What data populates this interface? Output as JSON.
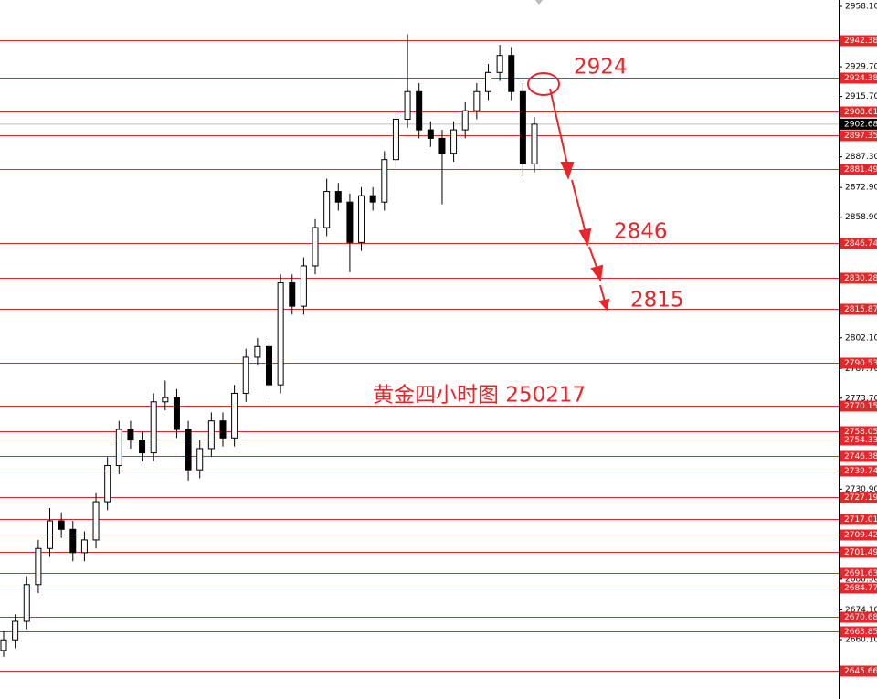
{
  "chart_data": {
    "type": "candlestick",
    "title": "黄金四小时图 250217",
    "annotations": [
      "2924",
      "2846",
      "2815"
    ],
    "open": [
      2655,
      2660,
      2668.7,
      2686,
      2703,
      2716,
      2712,
      2701,
      2707,
      2725,
      2742,
      2759,
      2754,
      2748,
      2772,
      2774,
      2759,
      2740,
      2750,
      2763,
      2755,
      2776,
      2793,
      2798,
      2780,
      2828,
      2817,
      2836,
      2854,
      2871,
      2866,
      2847,
      2869,
      2866,
      2886,
      2905,
      2918,
      2900,
      2896,
      2889,
      2900,
      2909,
      2918,
      2927,
      2935,
      2918,
      2884
    ],
    "high": [
      2664,
      2672,
      2690,
      2707,
      2722,
      2720,
      2716,
      2711,
      2729,
      2746,
      2763,
      2763,
      2758,
      2776,
      2782,
      2778,
      2763,
      2754,
      2767,
      2767,
      2780,
      2797,
      2802,
      2802,
      2832,
      2832,
      2840,
      2858,
      2877,
      2875,
      2870,
      2873,
      2873,
      2890,
      2909,
      2945,
      2922,
      2904,
      2900,
      2904,
      2913,
      2922,
      2931,
      2940,
      2939,
      2922,
      2906
    ],
    "low": [
      2652,
      2656,
      2665,
      2682,
      2699,
      2708,
      2697,
      2697,
      2703,
      2721,
      2738,
      2750,
      2744,
      2744,
      2768,
      2755,
      2735,
      2736,
      2746,
      2751,
      2751,
      2772,
      2789,
      2773,
      2776,
      2813,
      2813,
      2832,
      2850,
      2862,
      2833,
      2843,
      2862,
      2862,
      2882,
      2901,
      2896,
      2892,
      2865,
      2885,
      2896,
      2905,
      2914,
      2923,
      2914,
      2878,
      2880
    ],
    "close": [
      2660,
      2668.7,
      2686,
      2703,
      2716,
      2712,
      2701,
      2707,
      2725,
      2742,
      2759,
      2754,
      2748,
      2772,
      2774,
      2759,
      2740,
      2750,
      2763,
      2755,
      2776,
      2793,
      2798,
      2780,
      2828,
      2817,
      2836,
      2854,
      2871,
      2866,
      2847,
      2869,
      2866,
      2886,
      2905,
      2918,
      2900,
      2896,
      2889,
      2900,
      2909,
      2918,
      2927,
      2935,
      2918,
      2884,
      2902.68
    ],
    "ylim": [
      2632.15,
      2961.11
    ],
    "yticks": [
      {
        "value": 2958.1,
        "label": "2958.10"
      },
      {
        "value": 2929.7,
        "label": "2929.70"
      },
      {
        "value": 2915.7,
        "label": "2915.70"
      },
      {
        "value": 2887.3,
        "label": "2887.30"
      },
      {
        "value": 2872.9,
        "label": "2872.90"
      },
      {
        "value": 2858.9,
        "label": "2858.90"
      },
      {
        "value": 2802.1,
        "label": "2802.10"
      },
      {
        "value": 2787.7,
        "label": "2787.70"
      },
      {
        "value": 2773.7,
        "label": "2773.70"
      },
      {
        "value": 2730.9,
        "label": "2730.90"
      },
      {
        "value": 2688.5,
        "label": "2688.50"
      },
      {
        "value": 2674.1,
        "label": "2674.10"
      },
      {
        "value": 2660.1,
        "label": "2660.10"
      }
    ],
    "levels": [
      2942.38,
      2924.38,
      2908.61,
      2897.35,
      2881.49,
      2846.74,
      2830.28,
      2815.87,
      2790.53,
      2770.15,
      2758.05,
      2754.33,
      2746.38,
      2739.74,
      2727.19,
      2717.01,
      2709.42,
      2701.49,
      2691.63,
      2684.77,
      2670.68,
      2663.85,
      2645.66
    ],
    "level_color": "#e8262a",
    "current_price": 2902.68
  }
}
